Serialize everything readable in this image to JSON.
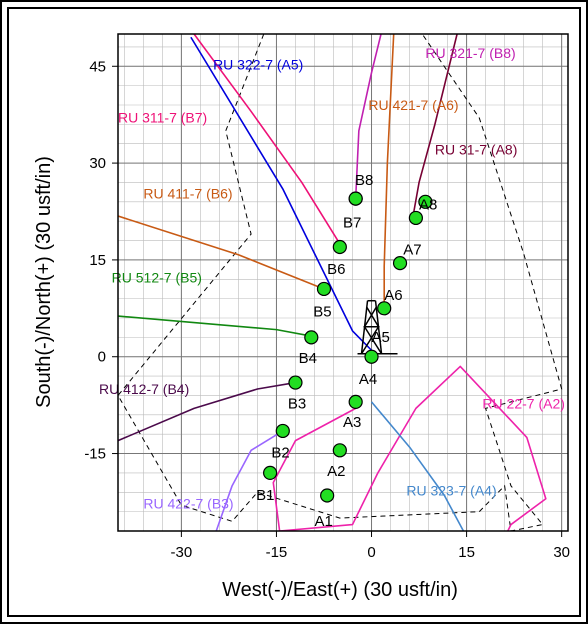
{
  "chart_data": {
    "type": "line",
    "title": "",
    "xlabel": "West(-)/East(+) (30 usft/in)",
    "ylabel": "South(-)/North(+) (30 usft/in)",
    "xlim": [
      -40,
      31
    ],
    "ylim": [
      -27,
      50
    ],
    "xticks": [
      -30,
      -15,
      0,
      15,
      30
    ],
    "yticks": [
      -15,
      0,
      15,
      30,
      45
    ],
    "grid": true,
    "minor_grid_step": 3,
    "wells": [
      {
        "name": "RU 322-7 (A5)",
        "color": "#0000dd",
        "label_at": [
          -25,
          44.5
        ],
        "points": [
          [
            -28.5,
            49.5
          ],
          [
            -14,
            26
          ],
          [
            -3,
            4
          ],
          [
            0.5,
            0.5
          ]
        ]
      },
      {
        "name": "RU 311-7 (B7)",
        "color": "#ee1177",
        "label_at": [
          -40,
          36.3
        ],
        "points": [
          [
            -28,
            50
          ],
          [
            -19,
            38
          ],
          [
            -11,
            27
          ],
          [
            -5,
            17.5
          ]
        ]
      },
      {
        "name": "RU 411-7 (B6)",
        "color": "#c85a14",
        "label_at": [
          -36,
          24.5
        ],
        "points": [
          [
            -40,
            21.8
          ],
          [
            -21,
            15.8
          ],
          [
            -7.5,
            10.5
          ]
        ]
      },
      {
        "name": "RU 512-7 (B5)",
        "color": "#118811",
        "label_at": [
          -41,
          11.5
        ],
        "points": [
          [
            -40,
            6.3
          ],
          [
            -15,
            4.2
          ],
          [
            -9,
            3.1
          ]
        ]
      },
      {
        "name": "RU 412-7 (B4)",
        "color": "#4b0a4b",
        "label_at": [
          -43,
          -5.8
        ],
        "points": [
          [
            -40,
            -13
          ],
          [
            -28,
            -8
          ],
          [
            -18,
            -5
          ],
          [
            -12,
            -4
          ]
        ]
      },
      {
        "name": "RU 422-7 (B3)",
        "color": "#9966ff",
        "label_at": [
          -36,
          -23.5
        ],
        "points": [
          [
            -24.5,
            -27
          ],
          [
            -22,
            -20
          ],
          [
            -19,
            -14.5
          ],
          [
            -14,
            -11.5
          ]
        ]
      },
      {
        "name": "RU 321-7 (B8)",
        "color": "#c020b0",
        "label_at": [
          8.5,
          46.3
        ],
        "points": [
          [
            1.5,
            50
          ],
          [
            0,
            44
          ],
          [
            -2,
            35
          ],
          [
            -2.5,
            24.5
          ]
        ]
      },
      {
        "name": "RU 421-7 (A6)",
        "color": "#c85a14",
        "label_at": [
          -0.5,
          38.2
        ],
        "points": [
          [
            3.5,
            50
          ],
          [
            2.5,
            30
          ],
          [
            2,
            14
          ],
          [
            2,
            7
          ]
        ]
      },
      {
        "name": "RU 31-7 (A8)",
        "color": "#770033",
        "label_at": [
          10,
          31.3
        ],
        "points": [
          [
            13.5,
            50
          ],
          [
            10,
            36
          ],
          [
            7.5,
            27
          ],
          [
            6.5,
            21.5
          ]
        ]
      },
      {
        "name": "RU 22-7 (A2)",
        "color": "#ee22aa",
        "label_at": [
          17.5,
          -8
        ],
        "points": [
          [
            -2.5,
            -8
          ],
          [
            -12,
            -13
          ],
          [
            -15.5,
            -19.5
          ],
          [
            -14.5,
            -27
          ],
          [
            -3,
            -26
          ],
          [
            1,
            -18
          ],
          [
            7,
            -8
          ],
          [
            14,
            -1.5
          ],
          [
            24.5,
            -12.5
          ],
          [
            27.5,
            -22
          ],
          [
            22,
            -26
          ],
          [
            21.5,
            -27
          ]
        ]
      },
      {
        "name": "RU 323-7 (A4)",
        "color": "#4488cc",
        "label_at": [
          5.5,
          -21.5
        ],
        "points": [
          [
            0,
            -7
          ],
          [
            6,
            -14
          ],
          [
            11.5,
            -21.5
          ],
          [
            14.5,
            -27
          ]
        ]
      }
    ],
    "points": [
      {
        "label": "A4",
        "x": 0,
        "y": 0,
        "label_at": [
          -2,
          -4.2
        ]
      },
      {
        "label": "A5",
        "x": 2,
        "y": 7.5,
        "label_at": [
          0,
          2.3
        ]
      },
      {
        "label": "A6",
        "x": 4.5,
        "y": 14.5,
        "label_at": [
          2,
          8.8
        ]
      },
      {
        "label": "A7",
        "x": 7,
        "y": 21.5,
        "label_at": [
          5,
          15.8
        ]
      },
      {
        "label": "A8",
        "x": 8.5,
        "y": 24,
        "label_at": [
          7.5,
          22.8
        ]
      },
      {
        "label": "A3",
        "x": -2.5,
        "y": -7,
        "label_at": [
          -4.5,
          -10.9
        ]
      },
      {
        "label": "A2",
        "x": -5,
        "y": -14.5,
        "label_at": [
          -7,
          -18.5
        ]
      },
      {
        "label": "A1",
        "x": -7,
        "y": -21.5,
        "label_at": [
          -9,
          -26.2
        ]
      },
      {
        "label": "B1",
        "x": -16,
        "y": -18,
        "label_at": [
          -18.2,
          -22.2
        ]
      },
      {
        "label": "B2",
        "x": -14,
        "y": -11.5,
        "label_at": [
          -15.8,
          -15.6
        ]
      },
      {
        "label": "B3",
        "x": -12,
        "y": -4,
        "label_at": [
          -13.2,
          -8.0
        ]
      },
      {
        "label": "B4",
        "x": -9.5,
        "y": 3,
        "label_at": [
          -11.5,
          -1.0
        ]
      },
      {
        "label": "B5",
        "x": -7.5,
        "y": 10.5,
        "label_at": [
          -9.2,
          6.2
        ]
      },
      {
        "label": "B6",
        "x": -5,
        "y": 17,
        "label_at": [
          -7.0,
          12.8
        ]
      },
      {
        "label": "B7",
        "x": -2.5,
        "y": 24.5,
        "label_at": [
          -4.5,
          20.0
        ]
      },
      {
        "label": "B8",
        "x": -2.5,
        "y": 24.5,
        "label_at": [
          -2.6,
          26.6
        ]
      }
    ],
    "lease_boundary": [
      [
        -17,
        50
      ],
      [
        -23,
        35
      ],
      [
        -19,
        19
      ],
      [
        -40,
        -6
      ],
      [
        -30,
        -23
      ],
      [
        -22,
        -25.5
      ],
      [
        -18,
        -21
      ],
      [
        -5,
        -25
      ],
      [
        17,
        -24
      ],
      [
        21,
        -20
      ],
      [
        22,
        -27
      ],
      [
        27,
        -26
      ],
      [
        22,
        -20
      ],
      [
        18,
        -8
      ],
      [
        30,
        -5
      ],
      [
        24,
        16
      ],
      [
        17,
        37
      ],
      [
        8,
        50
      ]
    ]
  }
}
